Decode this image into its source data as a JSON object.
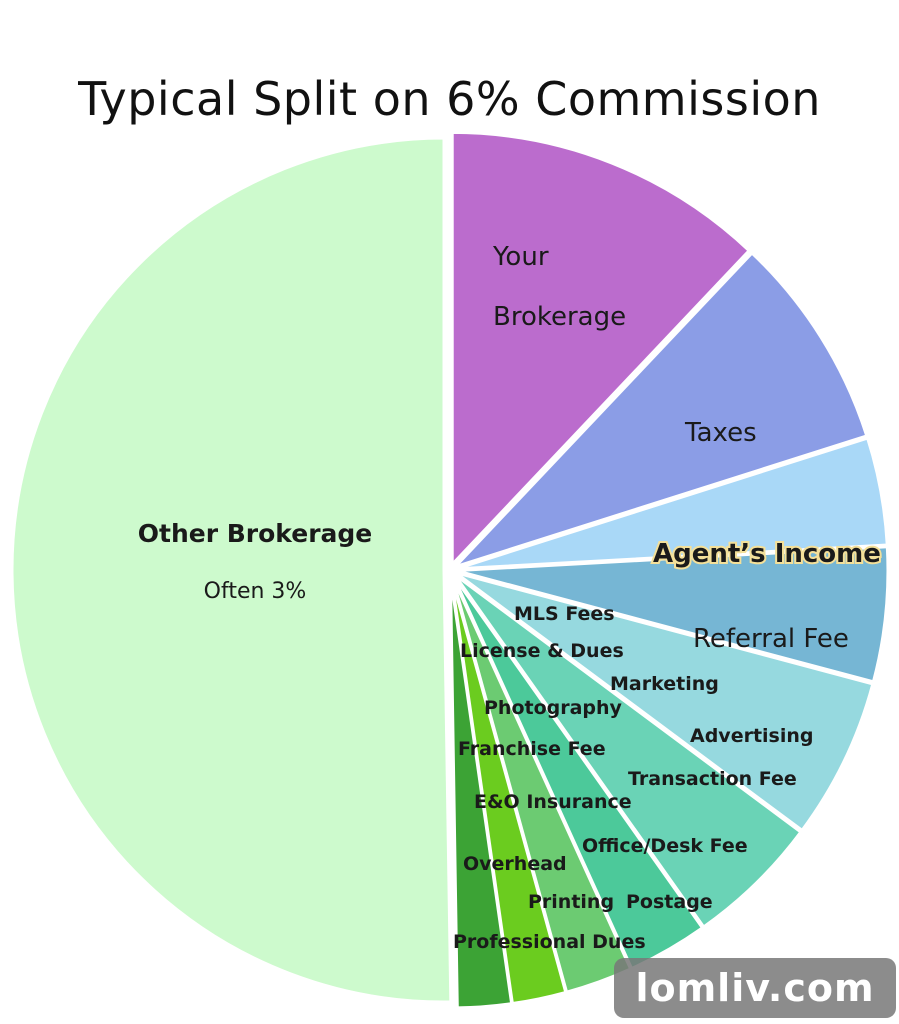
{
  "chart_data": {
    "type": "pie",
    "title": "Typical Split on 6%  Commission",
    "slices": [
      {
        "label": "Your Brokerage",
        "value": 12,
        "color": "#bb6ccd"
      },
      {
        "label": "Taxes",
        "value": 8,
        "color": "#8b9de6"
      },
      {
        "label": "Agent’s Income",
        "value": 4,
        "color": "#a9d8f7"
      },
      {
        "label": "Referral Fee",
        "value": 5,
        "color": "#76b6d4"
      },
      {
        "label": "Transaction Fee",
        "value": 6,
        "color": "#96d9df"
      },
      {
        "label": "Office/Desk Fee",
        "value": 5,
        "color": "#6ad3b6"
      },
      {
        "label": "Postage",
        "value": 3,
        "color": "#4cc99a"
      },
      {
        "label": "Printing",
        "value": 2.5,
        "color": "#6ccb72"
      },
      {
        "label": "Professional Dues",
        "value": 2,
        "color": "#6bcc1f"
      },
      {
        "label": "Overhead",
        "value": 2,
        "color": "#3ca335"
      },
      {
        "label": "Other Brokerage",
        "sublabel": "Often 3%",
        "value": 50,
        "color": "#cdfacd"
      }
    ],
    "inner_labels": [
      "MLS Fees",
      "License & Dues",
      "Marketing",
      "Photography",
      "Advertising",
      "Franchise Fee",
      "E&O Insurance"
    ]
  },
  "watermark": "lomliv.com"
}
